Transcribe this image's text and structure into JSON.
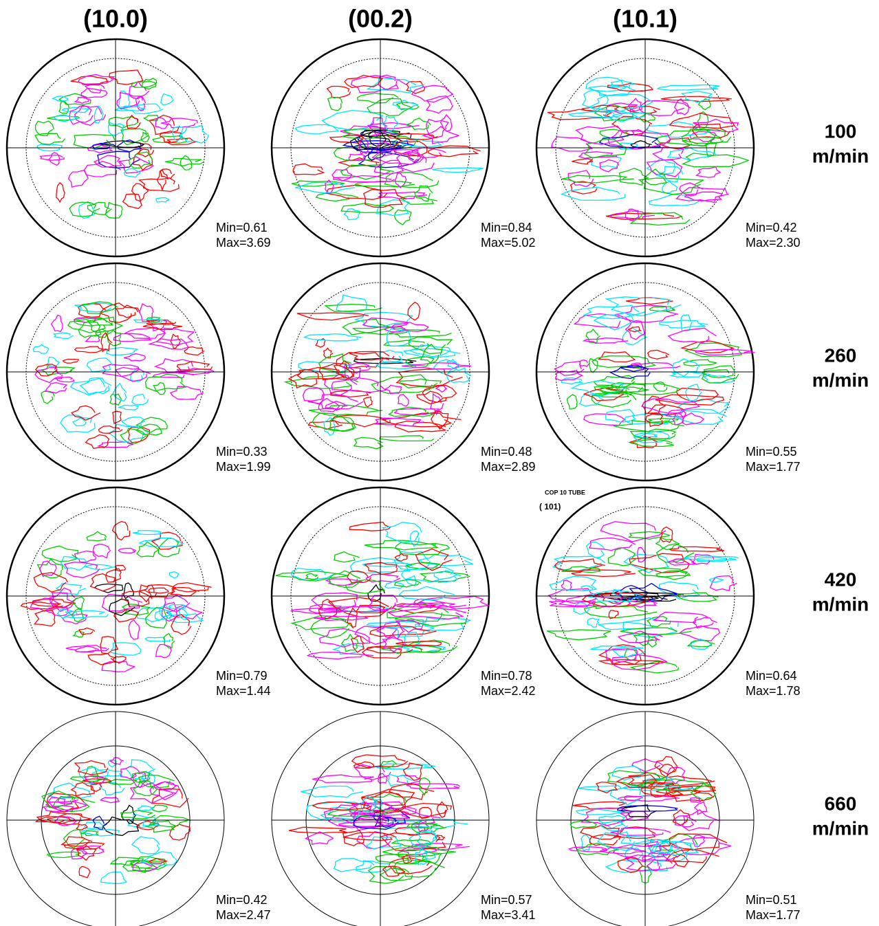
{
  "columns": [
    "(10.0)",
    "(00.2)",
    "(10.1)"
  ],
  "rows": [
    {
      "speed": "100",
      "unit": "m/min",
      "cells": [
        {
          "min": "Min=0.61",
          "max": "Max=3.69"
        },
        {
          "min": "Min=0.84",
          "max": "Max=5.02"
        },
        {
          "min": "Min=0.42",
          "max": "Max=2.30"
        }
      ]
    },
    {
      "speed": "260",
      "unit": "m/min",
      "cells": [
        {
          "min": "Min=0.33",
          "max": "Max=1.99"
        },
        {
          "min": "Min=0.48",
          "max": "Max=2.89"
        },
        {
          "min": "Min=0.55",
          "max": "Max=1.77"
        }
      ]
    },
    {
      "speed": "420",
      "unit": "m/min",
      "cells": [
        {
          "min": "Min=0.79",
          "max": "Max=1.44"
        },
        {
          "min": "Min=0.78",
          "max": "Max=2.42"
        },
        {
          "min": "Min=0.64",
          "max": "Max=1.78"
        }
      ]
    },
    {
      "speed": "660",
      "unit": "m/min",
      "cells": [
        {
          "min": "Min=0.42",
          "max": "Max=2.47"
        },
        {
          "min": "Min=0.57",
          "max": "Max=3.41"
        },
        {
          "min": "Min=0.51",
          "max": "Max=1.77"
        }
      ]
    }
  ],
  "annotation": {
    "line1": "COP 10 TUBE",
    "line2": "( 101)"
  }
}
